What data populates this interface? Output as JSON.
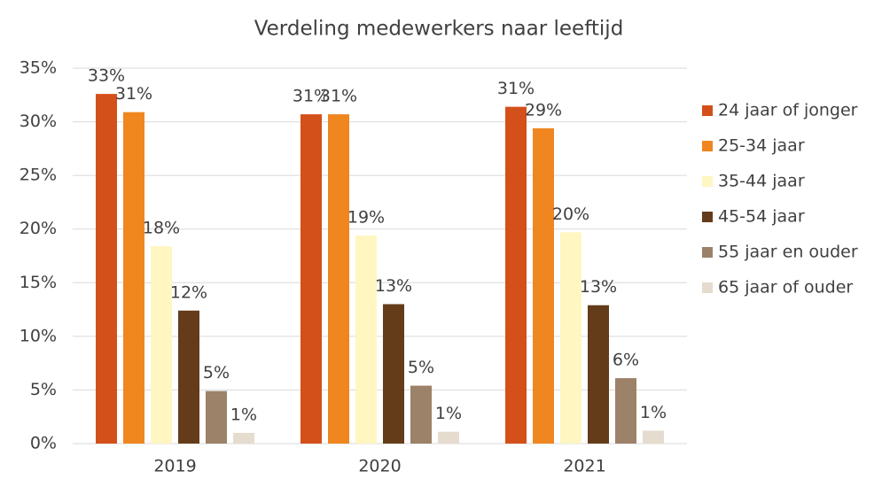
{
  "chart_data": {
    "type": "bar",
    "title": "Verdeling medewerkers naar leeftijd",
    "categories": [
      "2019",
      "2020",
      "2021"
    ],
    "series": [
      {
        "name": "24 jaar of jonger",
        "color": "#d4501a",
        "values": [
          32.6,
          30.7,
          31.4
        ],
        "value_labels": [
          "33%",
          "31%",
          "31%"
        ]
      },
      {
        "name": "25-34 jaar",
        "color": "#f0861f",
        "values": [
          30.9,
          30.7,
          29.4
        ],
        "value_labels": [
          "31%",
          "31%",
          "29%"
        ]
      },
      {
        "name": "35-44 jaar",
        "color": "#fff6c2",
        "values": [
          18.4,
          19.4,
          19.7
        ],
        "value_labels": [
          "18%",
          "19%",
          "20%"
        ]
      },
      {
        "name": "45-54 jaar",
        "color": "#643c19",
        "values": [
          12.4,
          13.0,
          12.9
        ],
        "value_labels": [
          "12%",
          "13%",
          "13%"
        ]
      },
      {
        "name": "55 jaar en ouder",
        "color": "#9c8269",
        "values": [
          4.9,
          5.4,
          6.1
        ],
        "value_labels": [
          "5%",
          "5%",
          "6%"
        ]
      },
      {
        "name": "65 jaar of ouder",
        "color": "#e5dccf",
        "values": [
          1.0,
          1.1,
          1.2
        ],
        "value_labels": [
          "1%",
          "1%",
          "1%"
        ]
      }
    ],
    "ylim": [
      0,
      35
    ],
    "yticks": [
      {
        "value": 0,
        "label": "0%"
      },
      {
        "value": 5,
        "label": "5%"
      },
      {
        "value": 10,
        "label": "10%"
      },
      {
        "value": 15,
        "label": "15%"
      },
      {
        "value": 20,
        "label": "20%"
      },
      {
        "value": 25,
        "label": "25%"
      },
      {
        "value": 30,
        "label": "30%"
      },
      {
        "value": 35,
        "label": "35%"
      }
    ],
    "grid": true,
    "legend": "right"
  }
}
